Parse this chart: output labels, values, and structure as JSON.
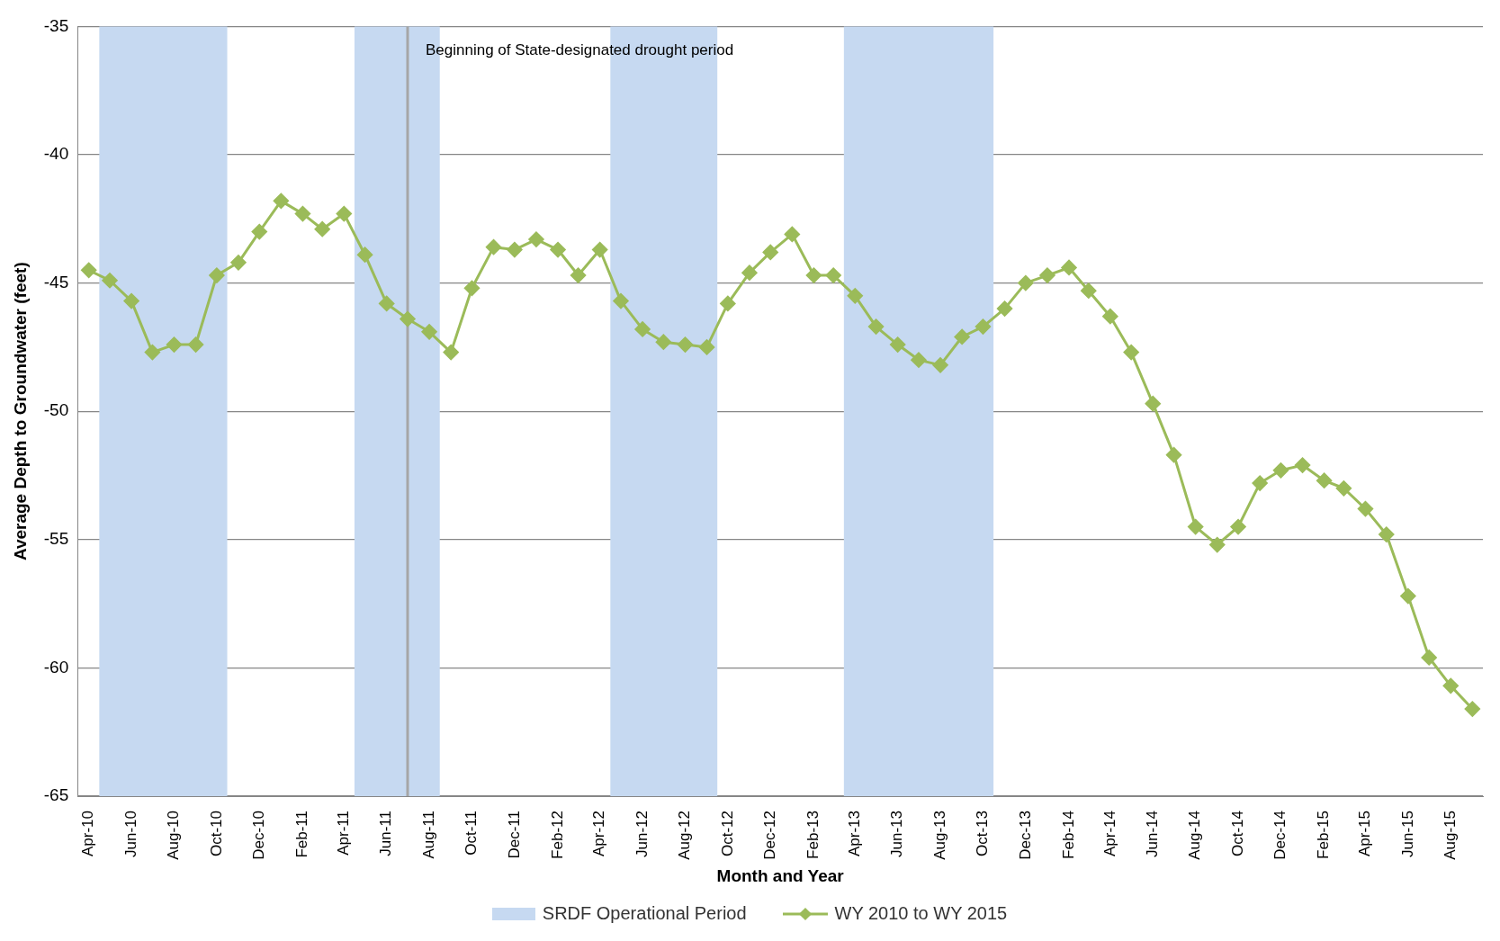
{
  "chart_data": {
    "type": "line",
    "xlabel": "Month and Year",
    "ylabel": "Average Depth to Groundwater (feet)",
    "x": [
      "2010-04",
      "2010-05",
      "2010-06",
      "2010-07",
      "2010-08",
      "2010-09",
      "2010-10",
      "2010-11",
      "2010-12",
      "2011-01",
      "2011-02",
      "2011-03",
      "2011-04",
      "2011-05",
      "2011-06",
      "2011-07",
      "2011-08",
      "2011-09",
      "2011-10",
      "2011-11",
      "2011-12",
      "2012-01",
      "2012-02",
      "2012-03",
      "2012-04",
      "2012-05",
      "2012-06",
      "2012-07",
      "2012-08",
      "2012-09",
      "2012-10",
      "2012-11",
      "2012-12",
      "2013-01",
      "2013-02",
      "2013-03",
      "2013-04",
      "2013-05",
      "2013-06",
      "2013-07",
      "2013-08",
      "2013-09",
      "2013-10",
      "2013-11",
      "2013-12",
      "2014-01",
      "2014-02",
      "2014-03",
      "2014-04",
      "2014-05",
      "2014-06",
      "2014-07",
      "2014-08",
      "2014-09",
      "2014-10",
      "2014-11",
      "2014-12",
      "2015-01",
      "2015-02",
      "2015-03",
      "2015-04",
      "2015-05",
      "2015-06",
      "2015-07",
      "2015-08",
      "2015-09"
    ],
    "series": [
      {
        "name": "WY 2010 to WY 2015",
        "color": "#9bbb59",
        "values": [
          -44.5,
          -44.9,
          -45.7,
          -47.7,
          -47.4,
          -47.4,
          -44.7,
          -44.2,
          -43.0,
          -41.8,
          -42.3,
          -42.9,
          -42.3,
          -43.9,
          -45.8,
          -46.4,
          -46.9,
          -47.7,
          -45.2,
          -43.6,
          -43.7,
          -43.3,
          -43.7,
          -44.7,
          -43.7,
          -45.7,
          -46.8,
          -47.3,
          -47.4,
          -47.5,
          -45.8,
          -44.6,
          -43.8,
          -43.1,
          -44.7,
          -44.7,
          -45.5,
          -46.7,
          -47.4,
          -48.0,
          -48.2,
          -47.1,
          -46.7,
          -46.0,
          -45.0,
          -44.7,
          -44.4,
          -45.3,
          -46.3,
          -47.7,
          -49.7,
          -51.7,
          -54.5,
          -55.2,
          -54.5,
          -52.8,
          -52.3,
          -52.1,
          -52.7,
          -53.0,
          -53.8,
          -54.8,
          -57.2,
          -59.6,
          -60.7,
          -61.6
        ]
      }
    ],
    "xlim": [
      "2010-03-16",
      "2015-09-16"
    ],
    "xticks": [
      {
        "value": "2010-04",
        "label": "Apr-10"
      },
      {
        "value": "2010-06",
        "label": "Jun-10"
      },
      {
        "value": "2010-08",
        "label": "Aug-10"
      },
      {
        "value": "2010-10",
        "label": "Oct-10"
      },
      {
        "value": "2010-12",
        "label": "Dec-10"
      },
      {
        "value": "2011-02",
        "label": "Feb-11"
      },
      {
        "value": "2011-04",
        "label": "Apr-11"
      },
      {
        "value": "2011-06",
        "label": "Jun-11"
      },
      {
        "value": "2011-08",
        "label": "Aug-11"
      },
      {
        "value": "2011-10",
        "label": "Oct-11"
      },
      {
        "value": "2011-12",
        "label": "Dec-11"
      },
      {
        "value": "2012-02",
        "label": "Feb-12"
      },
      {
        "value": "2012-04",
        "label": "Apr-12"
      },
      {
        "value": "2012-06",
        "label": "Jun-12"
      },
      {
        "value": "2012-08",
        "label": "Aug-12"
      },
      {
        "value": "2012-10",
        "label": "Oct-12"
      },
      {
        "value": "2012-12",
        "label": "Dec-12"
      },
      {
        "value": "2013-02",
        "label": "Feb-13"
      },
      {
        "value": "2013-04",
        "label": "Apr-13"
      },
      {
        "value": "2013-06",
        "label": "Jun-13"
      },
      {
        "value": "2013-08",
        "label": "Aug-13"
      },
      {
        "value": "2013-10",
        "label": "Oct-13"
      },
      {
        "value": "2013-12",
        "label": "Dec-13"
      },
      {
        "value": "2014-02",
        "label": "Feb-14"
      },
      {
        "value": "2014-04",
        "label": "Apr-14"
      },
      {
        "value": "2014-06",
        "label": "Jun-14"
      },
      {
        "value": "2014-08",
        "label": "Aug-14"
      },
      {
        "value": "2014-10",
        "label": "Oct-14"
      },
      {
        "value": "2014-12",
        "label": "Dec-14"
      },
      {
        "value": "2015-02",
        "label": "Feb-15"
      },
      {
        "value": "2015-04",
        "label": "Apr-15"
      },
      {
        "value": "2015-06",
        "label": "Jun-15"
      },
      {
        "value": "2015-08",
        "label": "Aug-15"
      }
    ],
    "ylim": [
      -65,
      -35
    ],
    "yticks": [
      -65,
      -60,
      -55,
      -50,
      -45,
      -40,
      -35
    ],
    "bands": [
      {
        "axis": "x",
        "from": "2010-04-16",
        "to": "2010-10-16",
        "label": "SRDF Operational Period",
        "color": "#c6d9f1"
      },
      {
        "axis": "x",
        "from": "2011-04-16",
        "to": "2011-08-16",
        "color": "#c6d9f1"
      },
      {
        "axis": "x",
        "from": "2012-04-16",
        "to": "2012-09-16",
        "color": "#c6d9f1"
      },
      {
        "axis": "x",
        "from": "2013-03-16",
        "to": "2013-10-16",
        "color": "#c6d9f1"
      }
    ],
    "ref_lines": [
      {
        "axis": "x",
        "value": "2011-07",
        "label": "Beginning of State-designated drought period",
        "color": "#a6a6a6"
      }
    ],
    "grid": "y",
    "legend": "bottom",
    "marker": "diamond",
    "line_style": "solid"
  }
}
